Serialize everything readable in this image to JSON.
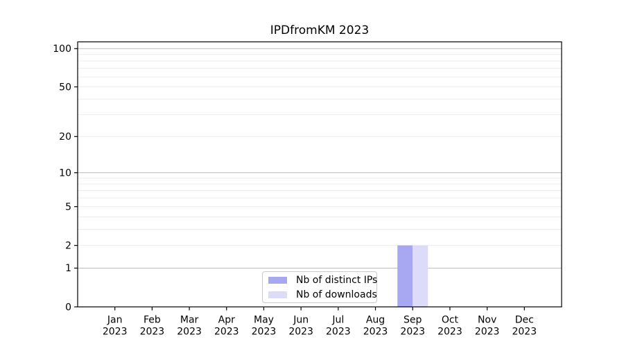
{
  "title": "IPDfromKM 2023",
  "year_label": "2023",
  "chart_data": {
    "type": "bar",
    "title": "IPDfromKM 2023",
    "months": [
      "Jan",
      "Feb",
      "Mar",
      "Apr",
      "May",
      "Jun",
      "Jul",
      "Aug",
      "Sep",
      "Oct",
      "Nov",
      "Dec"
    ],
    "year": "2023",
    "categories": [
      "Jan 2023",
      "Feb 2023",
      "Mar 2023",
      "Apr 2023",
      "May 2023",
      "Jun 2023",
      "Jul 2023",
      "Aug 2023",
      "Sep 2023",
      "Oct 2023",
      "Nov 2023",
      "Dec 2023"
    ],
    "series": [
      {
        "name": "Nb of distinct IPs",
        "color": "#a7a7f2",
        "values": [
          0,
          0,
          0,
          0,
          0,
          0,
          0,
          0,
          2,
          0,
          0,
          0
        ]
      },
      {
        "name": "Nb of downloads",
        "color": "#dcdcf8",
        "values": [
          0,
          0,
          0,
          0,
          0,
          0,
          0,
          0,
          2,
          0,
          0,
          0
        ]
      }
    ],
    "yscale": "log1p",
    "ylim": [
      0,
      113
    ],
    "yticks": [
      0,
      1,
      2,
      5,
      10,
      20,
      50,
      100
    ],
    "major_grid_values": [
      1,
      10,
      100
    ],
    "minor_grid_values": [
      2,
      3,
      4,
      5,
      6,
      7,
      8,
      9,
      20,
      30,
      40,
      50,
      60,
      70,
      80,
      90
    ],
    "grid": true,
    "legend_position": "lower center",
    "xlabel": "",
    "ylabel": ""
  },
  "colors": {
    "bar_distinct_ips": "#a7a7f2",
    "bar_downloads": "#dcdcf8",
    "major_grid": "#bcbcbc",
    "minor_grid": "#ececec",
    "axis": "#000000",
    "legend_border": "#c9c9c9",
    "background": "#ffffff"
  }
}
